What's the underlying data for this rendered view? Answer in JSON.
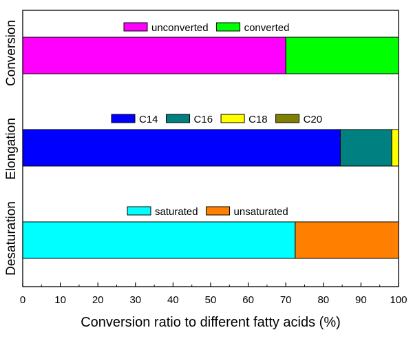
{
  "chart_data": {
    "type": "bar",
    "orientation": "horizontal",
    "stacked": true,
    "xlabel": "Conversion ratio to different fatty acids (%)",
    "xlim": [
      0,
      100
    ],
    "xticks": [
      0,
      10,
      20,
      30,
      40,
      50,
      60,
      70,
      80,
      90,
      100
    ],
    "grid": false,
    "rows": [
      {
        "label": "Conversion",
        "segments": [
          {
            "name": "unconverted",
            "value": 70.0,
            "color": "#ff00ff"
          },
          {
            "name": "converted",
            "value": 30.0,
            "color": "#00ff00"
          }
        ]
      },
      {
        "label": "Elongation",
        "segments": [
          {
            "name": "C14",
            "value": 84.5,
            "color": "#0000ff"
          },
          {
            "name": "C16",
            "value": 13.7,
            "color": "#008080"
          },
          {
            "name": "C18",
            "value": 1.8,
            "color": "#ffff00"
          },
          {
            "name": "C20",
            "value": 0.0,
            "color": "#808000"
          }
        ]
      },
      {
        "label": "Desaturation",
        "segments": [
          {
            "name": "saturated",
            "value": 72.5,
            "color": "#00ffff"
          },
          {
            "name": "unsaturated",
            "value": 27.5,
            "color": "#ff8000"
          }
        ]
      }
    ]
  }
}
